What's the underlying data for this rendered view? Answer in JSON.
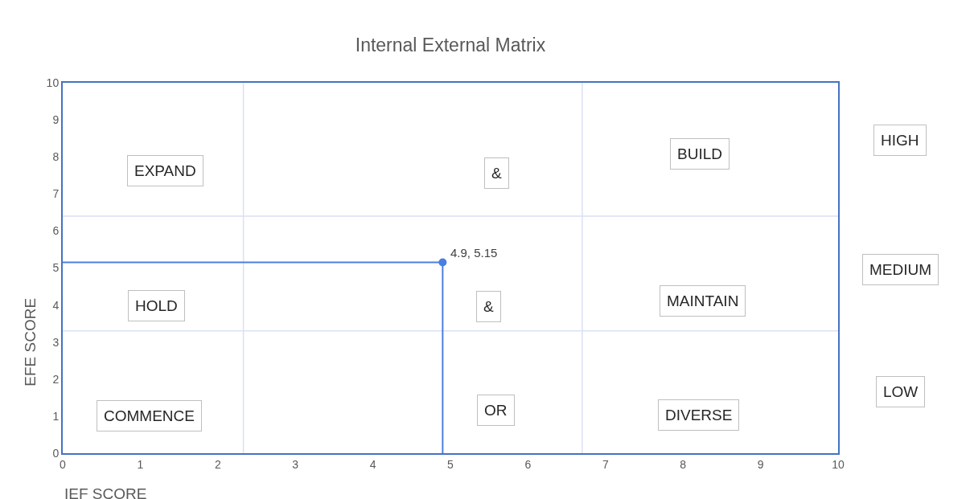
{
  "chart_data": {
    "type": "scatter",
    "title": "Internal External Matrix",
    "xlabel": "IEF SCORE",
    "ylabel": "EFE SCORE",
    "xlim": [
      0,
      10
    ],
    "ylim": [
      0,
      10
    ],
    "xticks": [
      0,
      1,
      2,
      3,
      4,
      5,
      6,
      7,
      8,
      9,
      10
    ],
    "yticks": [
      0,
      1,
      2,
      3,
      4,
      5,
      6,
      7,
      8,
      9,
      10
    ],
    "grid": false,
    "series": [
      {
        "color": "#4a7fe0",
        "x": [
          4.9
        ],
        "values": [
          5.15
        ],
        "marker": "circle"
      }
    ],
    "ref_lines": [
      {
        "axis": "x",
        "value": 2.33,
        "color": "#d9e1f2"
      },
      {
        "axis": "x",
        "value": 6.7,
        "color": "#d9e1f2"
      },
      {
        "axis": "y",
        "value": 3.3,
        "color": "#d9e1f2"
      },
      {
        "axis": "y",
        "value": 6.4,
        "color": "#d9e1f2"
      }
    ],
    "annotations": [
      {
        "text": "4.9, 5.15",
        "x": 4.9,
        "y": 5.15
      },
      "EXPAND",
      "&",
      "BUILD",
      "HOLD",
      "&",
      "MAINTAIN",
      "COMMENCE",
      "OR",
      "DIVERSE",
      "HIGH",
      "MEDIUM",
      "LOW"
    ]
  }
}
